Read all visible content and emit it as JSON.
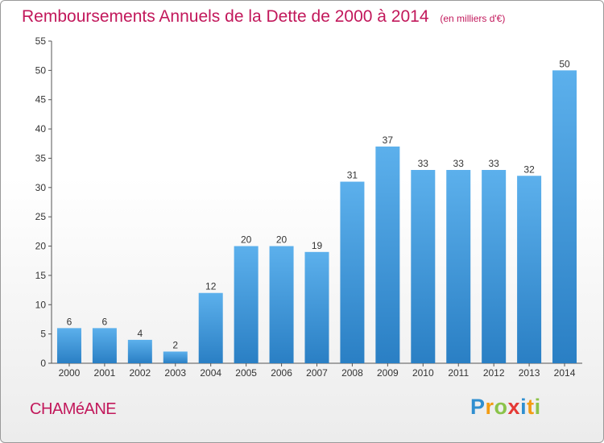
{
  "chart_data": {
    "type": "bar",
    "title": "Remboursements Annuels de la Dette de 2000 à 2014",
    "subtitle": "(en milliers d'€)",
    "categories": [
      "2000",
      "2001",
      "2002",
      "2003",
      "2004",
      "2005",
      "2006",
      "2007",
      "2008",
      "2009",
      "2010",
      "2011",
      "2012",
      "2013",
      "2014"
    ],
    "values": [
      6,
      6,
      4,
      2,
      12,
      20,
      20,
      19,
      31,
      37,
      33,
      33,
      33,
      32,
      50
    ],
    "ylim": [
      0,
      55
    ],
    "yticks": [
      0,
      5,
      10,
      15,
      20,
      25,
      30,
      35,
      40,
      45,
      50,
      55
    ],
    "grid": false,
    "bar_color": "#4fa3e3"
  },
  "footer": {
    "commune": "CHAMéANE",
    "brand_letters": [
      {
        "char": "P",
        "color": "#2f8fd0"
      },
      {
        "char": "r",
        "color": "#f39c12"
      },
      {
        "char": "o",
        "color": "#8bc34a"
      },
      {
        "char": "x",
        "color": "#e53935"
      },
      {
        "char": "i",
        "color": "#2f8fd0"
      },
      {
        "char": "t",
        "color": "#f39c12"
      },
      {
        "char": "i",
        "color": "#8bc34a"
      }
    ]
  },
  "colors": {
    "title": "#c2185b",
    "axis": "#555555",
    "label": "#333333"
  }
}
